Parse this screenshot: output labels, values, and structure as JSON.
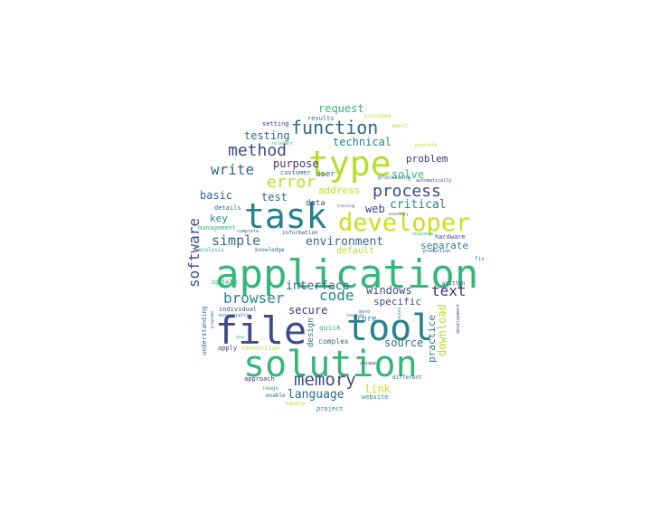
{
  "words": [
    {
      "text": "application",
      "color": "#35b779"
    },
    {
      "text": "file",
      "color": "#3e4a89"
    },
    {
      "text": "tool",
      "color": "#26828e"
    },
    {
      "text": "solution",
      "color": "#35b779"
    },
    {
      "text": "task",
      "color": "#26828e"
    },
    {
      "text": "type",
      "color": "#b5de2b"
    },
    {
      "text": "developer",
      "color": "#c8e020"
    },
    {
      "text": "function",
      "color": "#31688e"
    },
    {
      "text": "memory",
      "color": "#3e4a89"
    },
    {
      "text": "method",
      "color": "#3e4a89"
    },
    {
      "text": "error",
      "color": "#b5de2b"
    },
    {
      "text": "process",
      "color": "#3e4a89"
    },
    {
      "text": "write",
      "color": "#31688e"
    },
    {
      "text": "browser",
      "color": "#26828e"
    },
    {
      "text": "code",
      "color": "#26828e"
    },
    {
      "text": "text",
      "color": "#46327e"
    },
    {
      "text": "software",
      "color": "#3e4a89"
    },
    {
      "text": "simple",
      "color": "#31688e"
    },
    {
      "text": "environment",
      "color": "#31688e"
    },
    {
      "text": "language",
      "color": "#31688e"
    },
    {
      "text": "interface",
      "color": "#31688e"
    },
    {
      "text": "technical",
      "color": "#26828e"
    },
    {
      "text": "request",
      "color": "#35b779"
    },
    {
      "text": "testing",
      "color": "#31688e"
    },
    {
      "text": "purpose",
      "color": "#46327e"
    },
    {
      "text": "solve",
      "color": "#35b779"
    },
    {
      "text": "problem",
      "color": "#46327e"
    },
    {
      "text": "critical",
      "color": "#26828e"
    },
    {
      "text": "separate",
      "color": "#26828e"
    },
    {
      "text": "basic",
      "color": "#31688e"
    },
    {
      "text": "test",
      "color": "#31688e"
    },
    {
      "text": "address",
      "color": "#b5de2b"
    },
    {
      "text": "web",
      "color": "#3e4a89"
    },
    {
      "text": "key",
      "color": "#26828e"
    },
    {
      "text": "windows",
      "color": "#3e4a89"
    },
    {
      "text": "specific",
      "color": "#3e4a89"
    },
    {
      "text": "secure",
      "color": "#46327e"
    },
    {
      "text": "source",
      "color": "#31688e"
    },
    {
      "text": "link",
      "color": "#c8e020"
    },
    {
      "text": "download",
      "color": "#b5de2b"
    },
    {
      "text": "practice",
      "color": "#26828e"
    },
    {
      "text": "user",
      "color": "#31688e"
    },
    {
      "text": "data",
      "color": "#3e4a89"
    },
    {
      "text": "default",
      "color": "#b5de2b"
    },
    {
      "text": "core",
      "color": "#26828e"
    },
    {
      "text": "quick",
      "color": "#35b779"
    },
    {
      "text": "complex",
      "color": "#31688e"
    },
    {
      "text": "design",
      "color": "#31688e"
    },
    {
      "text": "update",
      "color": "#35b779"
    },
    {
      "text": "customer",
      "color": "#31688e"
    },
    {
      "text": "details",
      "color": "#31688e"
    },
    {
      "text": "management",
      "color": "#35b779"
    },
    {
      "text": "processing",
      "color": "#31688e"
    },
    {
      "text": "hardware",
      "color": "#3e4a89"
    },
    {
      "text": "setting",
      "color": "#46327e"
    },
    {
      "text": "results",
      "color": "#31688e"
    },
    {
      "text": "provided",
      "color": "#b5de2b"
    },
    {
      "text": "apart",
      "color": "#b5de2b"
    },
    {
      "text": "possible",
      "color": "#b5de2b"
    },
    {
      "text": "relevant",
      "color": "#35b779"
    },
    {
      "text": "automatically",
      "color": "#3e4a89"
    },
    {
      "text": "training",
      "color": "#3e4a89"
    },
    {
      "text": "necessary",
      "color": "#3e4a89"
    },
    {
      "text": "response",
      "color": "#35b779"
    },
    {
      "text": "production",
      "color": "#3e4a89"
    },
    {
      "text": "complete",
      "color": "#31688e"
    },
    {
      "text": "information",
      "color": "#3e4a89"
    },
    {
      "text": "analysis",
      "color": "#35b779"
    },
    {
      "text": "knowledge",
      "color": "#31688e"
    },
    {
      "text": "fix",
      "color": "#26828e"
    },
    {
      "text": "written",
      "color": "#3e4a89"
    },
    {
      "text": "development",
      "color": "#3e4a89"
    },
    {
      "text": "individual",
      "color": "#3e4a89"
    },
    {
      "text": "essentially",
      "color": "#31688e"
    },
    {
      "text": "learning",
      "color": "#31688e"
    },
    {
      "text": "word",
      "color": "#31688e"
    },
    {
      "text": "created",
      "color": "#26828e"
    },
    {
      "text": "understanding",
      "color": "#31688e"
    },
    {
      "text": "programs",
      "color": "#3e4a89"
    },
    {
      "text": "apply",
      "color": "#46327e"
    },
    {
      "text": "connection",
      "color": "#b5de2b"
    },
    {
      "text": "unique",
      "color": "#46327e"
    },
    {
      "text": "approach",
      "color": "#46327e"
    },
    {
      "text": "different",
      "color": "#31688e"
    },
    {
      "text": "image",
      "color": "#35b779"
    },
    {
      "text": "enable",
      "color": "#31688e"
    },
    {
      "text": "website",
      "color": "#26828e"
    },
    {
      "text": "handle",
      "color": "#b5de2b"
    },
    {
      "text": "project",
      "color": "#26828e"
    },
    {
      "text": "deep",
      "color": "#35b779"
    }
  ]
}
